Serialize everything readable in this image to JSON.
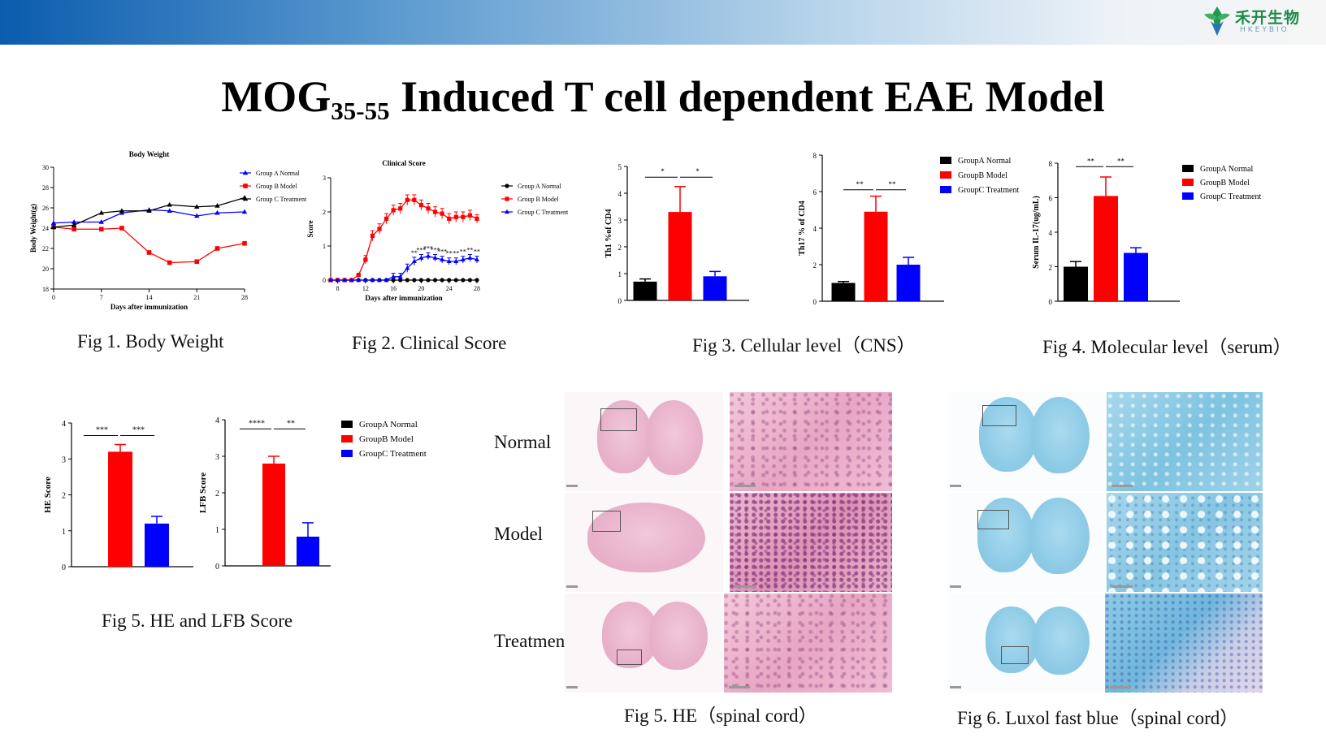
{
  "header": {
    "logo_name": "禾开生物",
    "logo_sub": "HKEYBIO"
  },
  "title": {
    "main_prefix": "MOG",
    "subscript": "35-55",
    "main_suffix": " Induced T cell dependent EAE Model"
  },
  "captions": {
    "fig1": "Fig 1. Body Weight",
    "fig2": "Fig 2. Clinical Score",
    "fig3": "Fig 3. Cellular level（CNS）",
    "fig4": "Fig 4. Molecular level（serum）",
    "fig5a": "Fig 5. HE and LFB Score",
    "fig5b": "Fig 5. HE（spinal cord）",
    "fig6": "Fig 6. Luxol fast blue（spinal cord）"
  },
  "histology": {
    "rows": [
      "Normal",
      "Model",
      "Treatment"
    ]
  },
  "colors": {
    "black": "#000000",
    "red": "#ff0000",
    "blue": "#0000ff"
  },
  "chart_data": [
    {
      "id": "fig1",
      "type": "line",
      "title": "Body Weight",
      "xlabel": "Days after immunization",
      "ylabel": "Body Weight(g)",
      "xlim": [
        0,
        28
      ],
      "ylim": [
        18,
        30
      ],
      "xticks": [
        0,
        7,
        14,
        21,
        28
      ],
      "yticks": [
        18,
        20,
        22,
        24,
        26,
        28,
        30
      ],
      "legend_position": "right",
      "series": [
        {
          "name": "Group A Normal",
          "color": "#0000ff",
          "marker": "triangle",
          "x": [
            0,
            3,
            7,
            10,
            14,
            17,
            21,
            24,
            28
          ],
          "y": [
            24.5,
            24.6,
            24.6,
            25.5,
            25.8,
            25.7,
            25.2,
            25.5,
            25.6
          ]
        },
        {
          "name": "Group B Model",
          "color": "#ff0000",
          "marker": "square",
          "x": [
            0,
            3,
            7,
            10,
            14,
            17,
            21,
            24,
            28
          ],
          "y": [
            24.1,
            23.9,
            23.9,
            24.0,
            21.6,
            20.6,
            20.7,
            22.0,
            22.5
          ]
        },
        {
          "name": "Group C Treatment",
          "color": "#000000",
          "marker": "triangle",
          "x": [
            0,
            3,
            7,
            10,
            14,
            17,
            21,
            24,
            28
          ],
          "y": [
            24.1,
            24.3,
            25.5,
            25.7,
            25.7,
            26.3,
            26.1,
            26.2,
            27.0
          ]
        }
      ]
    },
    {
      "id": "fig2",
      "type": "line",
      "title": "Clinical Score",
      "xlabel": "Days after immunization",
      "ylabel": "Score",
      "xlim": [
        7,
        28
      ],
      "ylim": [
        0,
        3
      ],
      "xticks": [
        8,
        12,
        16,
        20,
        24,
        28
      ],
      "yticks": [
        0,
        1,
        2,
        3
      ],
      "legend_position": "right",
      "series": [
        {
          "name": "Group A Normal",
          "color": "#000000",
          "marker": "circle",
          "x": [
            7,
            8,
            9,
            10,
            11,
            12,
            13,
            14,
            15,
            16,
            17,
            18,
            19,
            20,
            21,
            22,
            23,
            24,
            25,
            26,
            27,
            28
          ],
          "y": [
            0,
            0,
            0,
            0,
            0,
            0,
            0,
            0,
            0,
            0,
            0,
            0,
            0,
            0,
            0,
            0,
            0,
            0,
            0,
            0,
            0,
            0
          ]
        },
        {
          "name": "Group B Model",
          "color": "#ff0000",
          "marker": "square",
          "x": [
            7,
            8,
            9,
            10,
            11,
            12,
            13,
            14,
            15,
            16,
            17,
            18,
            19,
            20,
            21,
            22,
            23,
            24,
            25,
            26,
            27,
            28
          ],
          "y": [
            0,
            0,
            0,
            0,
            0.15,
            0.6,
            1.3,
            1.5,
            1.8,
            2.05,
            2.1,
            2.35,
            2.35,
            2.2,
            2.1,
            2.0,
            1.95,
            1.8,
            1.85,
            1.85,
            1.9,
            1.8
          ],
          "err": [
            0,
            0,
            0,
            0,
            0.05,
            0.12,
            0.15,
            0.15,
            0.15,
            0.15,
            0.15,
            0.15,
            0.15,
            0.15,
            0.15,
            0.15,
            0.15,
            0.15,
            0.15,
            0.15,
            0.15,
            0.12
          ]
        },
        {
          "name": "Group C Treatment",
          "color": "#0000ff",
          "marker": "triangle",
          "x": [
            7,
            8,
            9,
            10,
            11,
            12,
            13,
            14,
            15,
            16,
            17,
            18,
            19,
            20,
            21,
            22,
            23,
            24,
            25,
            26,
            27,
            28
          ],
          "y": [
            0,
            0,
            0,
            0,
            0,
            0,
            0,
            0,
            0,
            0.1,
            0.1,
            0.35,
            0.55,
            0.65,
            0.7,
            0.65,
            0.6,
            0.55,
            0.55,
            0.6,
            0.65,
            0.6
          ],
          "err": [
            0,
            0,
            0,
            0,
            0,
            0,
            0,
            0,
            0,
            0.1,
            0.1,
            0.12,
            0.12,
            0.1,
            0.1,
            0.1,
            0.1,
            0.1,
            0.1,
            0.1,
            0.1,
            0.1
          ]
        }
      ],
      "annotations": [
        {
          "x": 19,
          "text": "**"
        },
        {
          "x": 20,
          "text": "***"
        },
        {
          "x": 21,
          "text": "***"
        },
        {
          "x": 22,
          "text": "***"
        },
        {
          "x": 23,
          "text": "***"
        },
        {
          "x": 24,
          "text": "**"
        },
        {
          "x": 25,
          "text": "**"
        },
        {
          "x": 26,
          "text": "**"
        },
        {
          "x": 27,
          "text": "**"
        },
        {
          "x": 28,
          "text": "**"
        }
      ]
    },
    {
      "id": "fig3a",
      "type": "bar",
      "ylabel": "Th1 %of CD4",
      "ylim": [
        0,
        5
      ],
      "yticks": [
        0,
        1,
        2,
        3,
        4,
        5
      ],
      "categories": [
        "GroupA Normal",
        "GroupB Model",
        "GroupC Treatment"
      ],
      "values": [
        0.7,
        3.3,
        0.9
      ],
      "errors": [
        0.1,
        0.95,
        0.18
      ],
      "colors": [
        "#000000",
        "#ff0000",
        "#0000ff"
      ],
      "sig": [
        {
          "from": 0,
          "to": 1,
          "text": "*"
        },
        {
          "from": 1,
          "to": 2,
          "text": "*"
        }
      ],
      "sig_y": 4.6
    },
    {
      "id": "fig3b",
      "type": "bar",
      "ylabel": "Th17 % of CD4",
      "ylim": [
        0,
        8
      ],
      "yticks": [
        0,
        2,
        4,
        6,
        8
      ],
      "categories": [
        "GroupA Normal",
        "GroupB Model",
        "GroupC Treatment"
      ],
      "values": [
        1.0,
        4.9,
        2.0
      ],
      "errors": [
        0.08,
        0.85,
        0.4
      ],
      "colors": [
        "#000000",
        "#ff0000",
        "#0000ff"
      ],
      "sig": [
        {
          "from": 0,
          "to": 1,
          "text": "**"
        },
        {
          "from": 1,
          "to": 2,
          "text": "**"
        }
      ],
      "sig_y": 6.1,
      "legend": [
        "GroupA Normal",
        "GroupB Model",
        "GroupC Treatment"
      ]
    },
    {
      "id": "fig4",
      "type": "bar",
      "ylabel": "Serum IL-17(ug/mL)",
      "ylim": [
        0,
        8
      ],
      "yticks": [
        0,
        2,
        4,
        6,
        8
      ],
      "categories": [
        "GroupA Normal",
        "GroupB Model",
        "GroupC Treatment"
      ],
      "values": [
        2.0,
        6.1,
        2.8
      ],
      "errors": [
        0.3,
        1.1,
        0.3
      ],
      "colors": [
        "#000000",
        "#ff0000",
        "#0000ff"
      ],
      "sig": [
        {
          "from": 0,
          "to": 1,
          "text": "**"
        },
        {
          "from": 1,
          "to": 2,
          "text": "**"
        }
      ],
      "sig_y": 7.8,
      "legend": [
        "GroupA Normal",
        "GroupB Model",
        "GroupC Treatment"
      ]
    },
    {
      "id": "fig5a",
      "type": "bar",
      "ylabel": "HE Score",
      "ylim": [
        0,
        4
      ],
      "yticks": [
        0,
        1,
        2,
        3,
        4
      ],
      "categories": [
        "GroupA Normal",
        "GroupB Model",
        "GroupC Treatment"
      ],
      "values": [
        0,
        3.2,
        1.2
      ],
      "errors": [
        0,
        0.2,
        0.2
      ],
      "colors": [
        "#000000",
        "#ff0000",
        "#0000ff"
      ],
      "sig": [
        {
          "from": 0,
          "to": 1,
          "text": "***"
        },
        {
          "from": 1,
          "to": 2,
          "text": "***"
        }
      ],
      "sig_y": 3.65
    },
    {
      "id": "fig5b",
      "type": "bar",
      "ylabel": "LFB Score",
      "ylim": [
        0,
        4
      ],
      "yticks": [
        0,
        1,
        2,
        3,
        4
      ],
      "categories": [
        "GroupA Normal",
        "GroupB Model",
        "GroupC Treatment"
      ],
      "values": [
        0,
        2.8,
        0.8
      ],
      "errors": [
        0,
        0.2,
        0.38
      ],
      "colors": [
        "#000000",
        "#ff0000",
        "#0000ff"
      ],
      "sig": [
        {
          "from": 0,
          "to": 1,
          "text": "****"
        },
        {
          "from": 1,
          "to": 2,
          "text": "**"
        }
      ],
      "sig_y": 3.75,
      "legend": [
        "GroupA Normal",
        "GroupB Model",
        "GroupC Treatment"
      ]
    }
  ]
}
